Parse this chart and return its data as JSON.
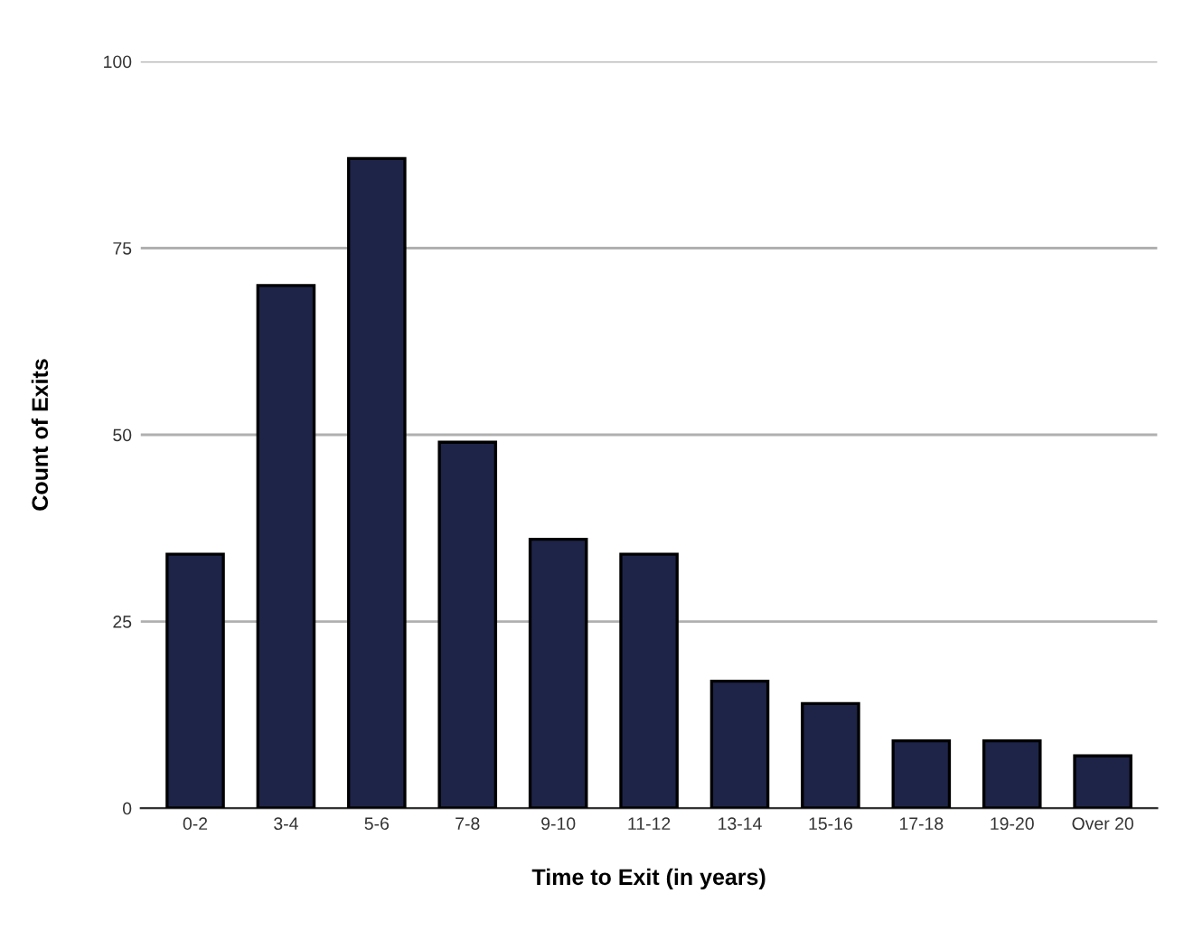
{
  "chart_data": {
    "type": "bar",
    "xlabel": "Time to Exit (in years)",
    "ylabel": "Count of Exits",
    "categories": [
      "0-2",
      "3-4",
      "5-6",
      "7-8",
      "9-10",
      "11-12",
      "13-14",
      "15-16",
      "17-18",
      "19-20",
      "Over 20"
    ],
    "values": [
      34,
      70,
      87,
      49,
      36,
      34,
      17,
      14,
      9,
      9,
      7
    ],
    "color": "#1e2448",
    "ylim": [
      0,
      100
    ],
    "yticks": [
      0,
      25,
      50,
      75,
      100
    ],
    "grid": "y"
  }
}
